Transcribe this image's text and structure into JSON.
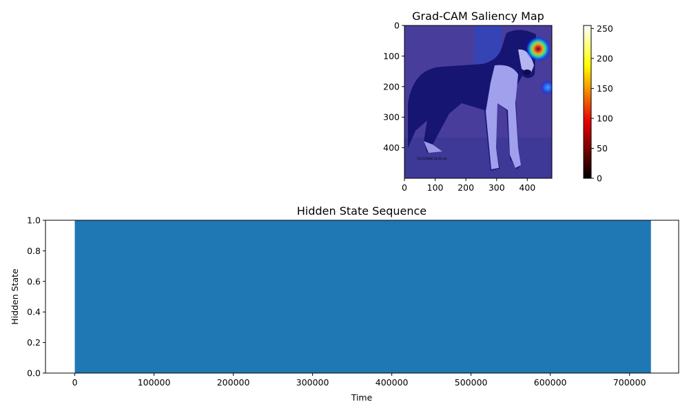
{
  "chart_data": [
    {
      "type": "heatmap",
      "title": "Grad-CAM Saliency Map",
      "image_subject": "dog",
      "overlay_colormap": "jet",
      "xlim": [
        0,
        480
      ],
      "ylim": [
        500,
        0
      ],
      "x_ticks": [
        0,
        100,
        200,
        300,
        400
      ],
      "y_ticks": [
        0,
        100,
        200,
        300,
        400
      ],
      "hotspots": [
        {
          "x": 440,
          "y": 75,
          "intensity": 255
        },
        {
          "x": 475,
          "y": 205,
          "intensity": 120
        }
      ],
      "colorbar": {
        "colormap": "hot",
        "range": [
          0,
          255
        ],
        "ticks": [
          0,
          50,
          100,
          150,
          200,
          250
        ]
      }
    },
    {
      "type": "bar",
      "title": "Hidden State Sequence",
      "xlabel": "Time",
      "ylabel": "Hidden State",
      "xlim": [
        -37000,
        762000
      ],
      "ylim": [
        0,
        1
      ],
      "x_ticks": [
        0,
        100000,
        200000,
        300000,
        400000,
        500000,
        600000,
        700000
      ],
      "y_ticks": [
        "0.0",
        "0.2",
        "0.4",
        "0.6",
        "0.8",
        "1.0"
      ],
      "fill_span": [
        0,
        727000
      ],
      "value": 1.0,
      "color": "#1f77b4"
    }
  ]
}
